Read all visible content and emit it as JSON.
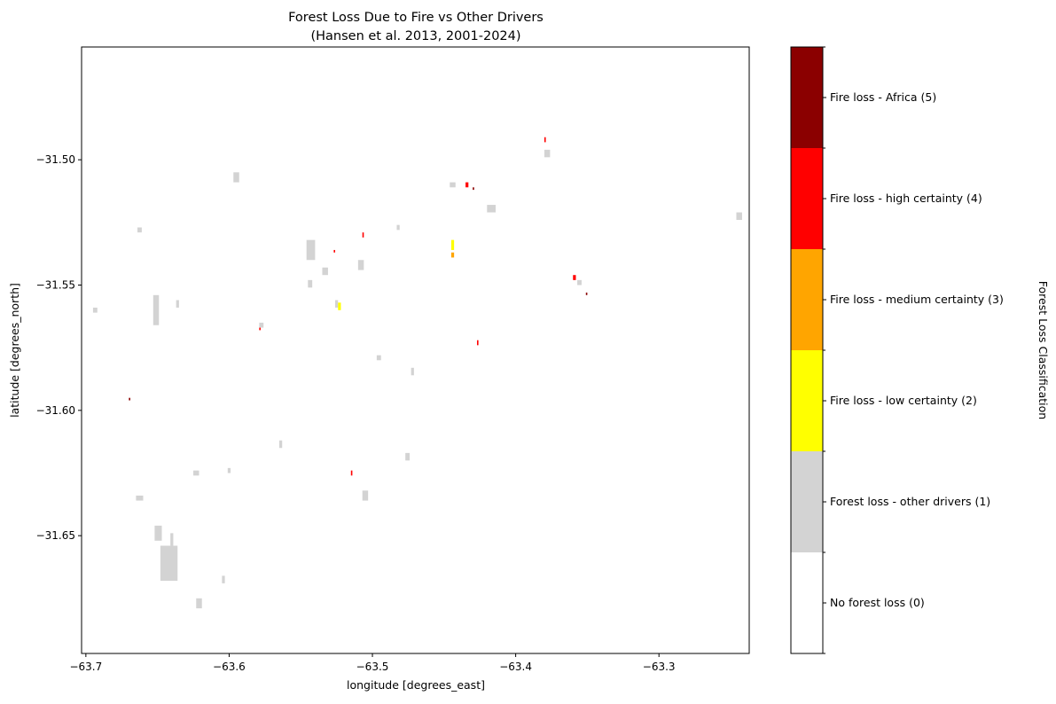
{
  "chart_data": {
    "type": "heatmap",
    "title_line1": "Forest Loss Due to Fire vs Other Drivers",
    "title_line2": "(Hansen et al. 2013, 2001-2024)",
    "xlabel": "longitude [degrees_east]",
    "ylabel": "latitude [degrees_north]",
    "xlim": [
      -63.703,
      -63.237
    ],
    "ylim": [
      -31.697,
      -31.455
    ],
    "x_ticks": [
      {
        "value": -63.7,
        "label": "−63.7"
      },
      {
        "value": -63.6,
        "label": "−63.6"
      },
      {
        "value": -63.5,
        "label": "−63.5"
      },
      {
        "value": -63.4,
        "label": "−63.4"
      },
      {
        "value": -63.3,
        "label": "−63.3"
      }
    ],
    "y_ticks": [
      {
        "value": -31.5,
        "label": "−31.50"
      },
      {
        "value": -31.55,
        "label": "−31.55"
      },
      {
        "value": -31.6,
        "label": "−31.60"
      },
      {
        "value": -31.65,
        "label": "−31.65"
      }
    ],
    "colorbar": {
      "label": "Forest Loss Classification",
      "classes": [
        {
          "value": 0,
          "label": "No forest loss (0)",
          "color": "#ffffff"
        },
        {
          "value": 1,
          "label": "Forest loss - other drivers (1)",
          "color": "#d3d3d3"
        },
        {
          "value": 2,
          "label": "Fire loss - low certainty (2)",
          "color": "#ffff00"
        },
        {
          "value": 3,
          "label": "Fire loss - medium certainty (3)",
          "color": "#ffa500"
        },
        {
          "value": 4,
          "label": "Fire loss - high certainty (4)",
          "color": "#ff0000"
        },
        {
          "value": 5,
          "label": "Fire loss - Africa (5)",
          "color": "#8b0000"
        }
      ]
    },
    "patches": [
      {
        "lon": -63.653,
        "lat": -31.566,
        "w": 0.004,
        "h": 0.012,
        "cls": 1
      },
      {
        "lon": -63.648,
        "lat": -31.668,
        "w": 0.012,
        "h": 0.014,
        "cls": 1
      },
      {
        "lon": -63.652,
        "lat": -31.652,
        "w": 0.005,
        "h": 0.006,
        "cls": 1
      },
      {
        "lon": -63.641,
        "lat": -31.654,
        "w": 0.002,
        "h": 0.005,
        "cls": 1
      },
      {
        "lon": -63.623,
        "lat": -31.679,
        "w": 0.004,
        "h": 0.004,
        "cls": 1
      },
      {
        "lon": -63.665,
        "lat": -31.636,
        "w": 0.005,
        "h": 0.002,
        "cls": 1
      },
      {
        "lon": -63.597,
        "lat": -31.509,
        "w": 0.004,
        "h": 0.004,
        "cls": 1
      },
      {
        "lon": -63.546,
        "lat": -31.54,
        "w": 0.006,
        "h": 0.008,
        "cls": 1
      },
      {
        "lon": -63.535,
        "lat": -31.546,
        "w": 0.004,
        "h": 0.003,
        "cls": 1
      },
      {
        "lon": -63.51,
        "lat": -31.544,
        "w": 0.004,
        "h": 0.004,
        "cls": 1
      },
      {
        "lon": -63.545,
        "lat": -31.551,
        "w": 0.003,
        "h": 0.003,
        "cls": 1
      },
      {
        "lon": -63.625,
        "lat": -31.626,
        "w": 0.004,
        "h": 0.002,
        "cls": 1
      },
      {
        "lon": -63.637,
        "lat": -31.559,
        "w": 0.002,
        "h": 0.003,
        "cls": 1
      },
      {
        "lon": -63.605,
        "lat": -31.669,
        "w": 0.002,
        "h": 0.003,
        "cls": 1
      },
      {
        "lon": -63.695,
        "lat": -31.561,
        "w": 0.003,
        "h": 0.002,
        "cls": 1
      },
      {
        "lon": -63.664,
        "lat": -31.529,
        "w": 0.003,
        "h": 0.002,
        "cls": 1
      },
      {
        "lon": -63.446,
        "lat": -31.511,
        "w": 0.004,
        "h": 0.002,
        "cls": 1
      },
      {
        "lon": -63.42,
        "lat": -31.521,
        "w": 0.006,
        "h": 0.003,
        "cls": 1
      },
      {
        "lon": -63.38,
        "lat": -31.499,
        "w": 0.004,
        "h": 0.003,
        "cls": 1
      },
      {
        "lon": -63.357,
        "lat": -31.55,
        "w": 0.003,
        "h": 0.002,
        "cls": 1
      },
      {
        "lon": -63.246,
        "lat": -31.524,
        "w": 0.004,
        "h": 0.003,
        "cls": 1
      },
      {
        "lon": -63.507,
        "lat": -31.636,
        "w": 0.004,
        "h": 0.004,
        "cls": 1
      },
      {
        "lon": -63.477,
        "lat": -31.62,
        "w": 0.003,
        "h": 0.003,
        "cls": 1
      },
      {
        "lon": -63.579,
        "lat": -31.567,
        "w": 0.003,
        "h": 0.002,
        "cls": 1
      },
      {
        "lon": -63.565,
        "lat": -31.615,
        "w": 0.002,
        "h": 0.003,
        "cls": 1
      },
      {
        "lon": -63.497,
        "lat": -31.58,
        "w": 0.003,
        "h": 0.002,
        "cls": 1
      },
      {
        "lon": -63.473,
        "lat": -31.586,
        "w": 0.002,
        "h": 0.003,
        "cls": 1
      },
      {
        "lon": -63.483,
        "lat": -31.528,
        "w": 0.002,
        "h": 0.002,
        "cls": 1
      },
      {
        "lon": -63.526,
        "lat": -31.559,
        "w": 0.002,
        "h": 0.003,
        "cls": 1
      },
      {
        "lon": -63.601,
        "lat": -31.625,
        "w": 0.002,
        "h": 0.002,
        "cls": 1
      },
      {
        "lon": -63.445,
        "lat": -31.536,
        "w": 0.002,
        "h": 0.004,
        "cls": 2
      },
      {
        "lon": -63.524,
        "lat": -31.56,
        "w": 0.002,
        "h": 0.003,
        "cls": 2
      },
      {
        "lon": -63.445,
        "lat": -31.539,
        "w": 0.002,
        "h": 0.002,
        "cls": 3
      },
      {
        "lon": -63.435,
        "lat": -31.511,
        "w": 0.002,
        "h": 0.002,
        "cls": 4
      },
      {
        "lon": -63.36,
        "lat": -31.548,
        "w": 0.002,
        "h": 0.002,
        "cls": 4
      },
      {
        "lon": -63.38,
        "lat": -31.493,
        "w": 0.001,
        "h": 0.002,
        "cls": 4
      },
      {
        "lon": -63.515,
        "lat": -31.626,
        "w": 0.001,
        "h": 0.002,
        "cls": 4
      },
      {
        "lon": -63.507,
        "lat": -31.531,
        "w": 0.001,
        "h": 0.002,
        "cls": 4
      },
      {
        "lon": -63.427,
        "lat": -31.574,
        "w": 0.001,
        "h": 0.002,
        "cls": 4
      },
      {
        "lon": -63.579,
        "lat": -31.568,
        "w": 0.001,
        "h": 0.001,
        "cls": 4
      },
      {
        "lon": -63.527,
        "lat": -31.537,
        "w": 0.001,
        "h": 0.001,
        "cls": 4
      },
      {
        "lon": -63.43,
        "lat": -31.512,
        "w": 0.001,
        "h": 0.001,
        "cls": 5
      },
      {
        "lon": -63.67,
        "lat": -31.596,
        "w": 0.001,
        "h": 0.001,
        "cls": 5
      },
      {
        "lon": -63.351,
        "lat": -31.554,
        "w": 0.001,
        "h": 0.001,
        "cls": 5
      }
    ]
  }
}
